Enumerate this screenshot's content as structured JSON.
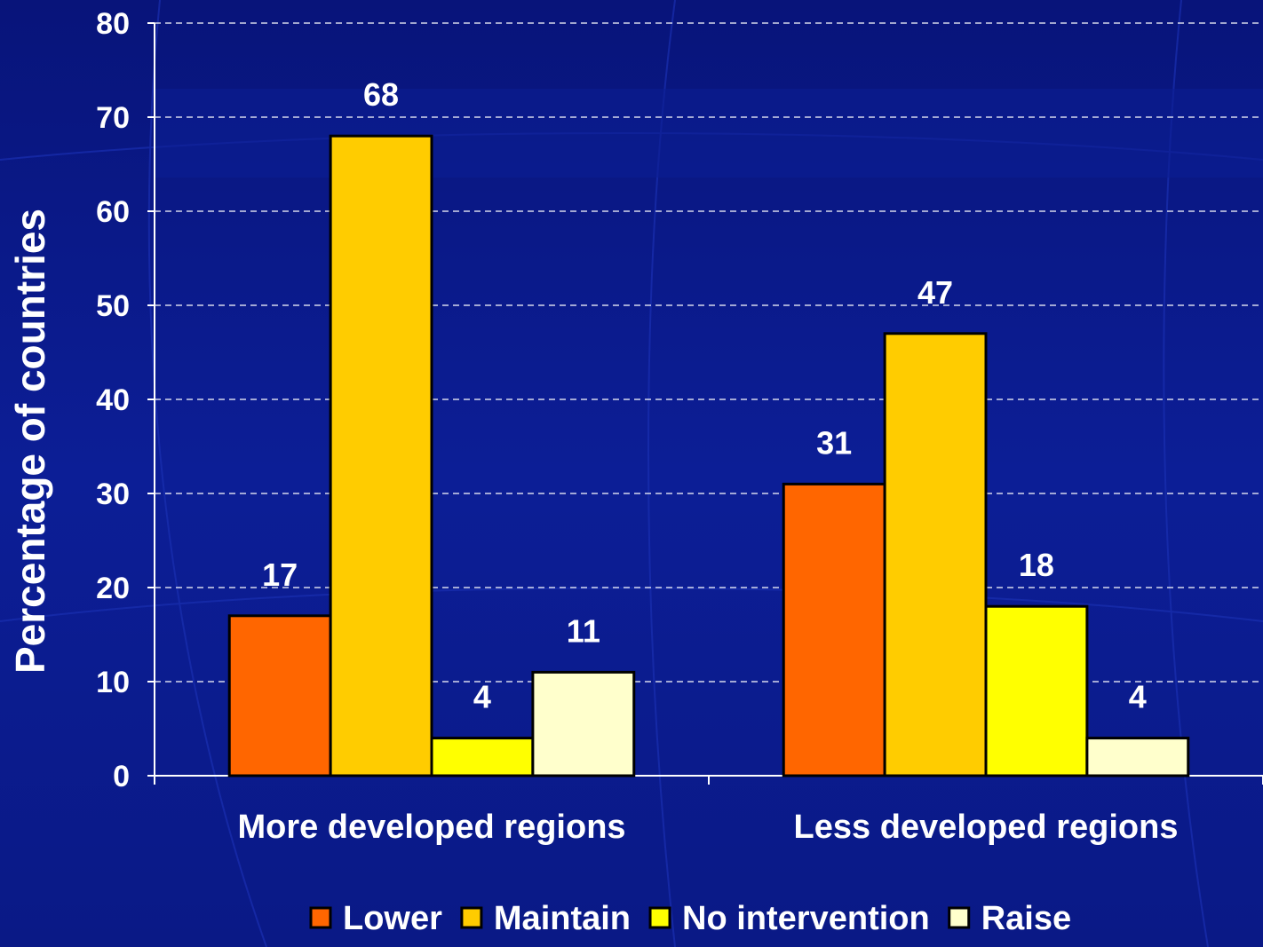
{
  "chart_data": {
    "type": "bar",
    "title": "",
    "xlabel": "",
    "ylabel": "Percentage of countries",
    "ylim": [
      0,
      80
    ],
    "yticks": [
      0,
      10,
      20,
      30,
      40,
      50,
      60,
      70,
      80
    ],
    "grid": true,
    "legend_position": "bottom",
    "categories": [
      "More developed regions",
      "Less developed regions"
    ],
    "series": [
      {
        "name": "Lower",
        "color": "#ff6600",
        "values": [
          17,
          31
        ]
      },
      {
        "name": "Maintain",
        "color": "#ffcc00",
        "values": [
          68,
          47
        ]
      },
      {
        "name": "No intervention",
        "color": "#ffff00",
        "values": [
          4,
          18
        ]
      },
      {
        "name": "Raise",
        "color": "#ffffcc",
        "values": [
          11,
          4
        ]
      }
    ],
    "background_color": "#0a1a8c"
  }
}
